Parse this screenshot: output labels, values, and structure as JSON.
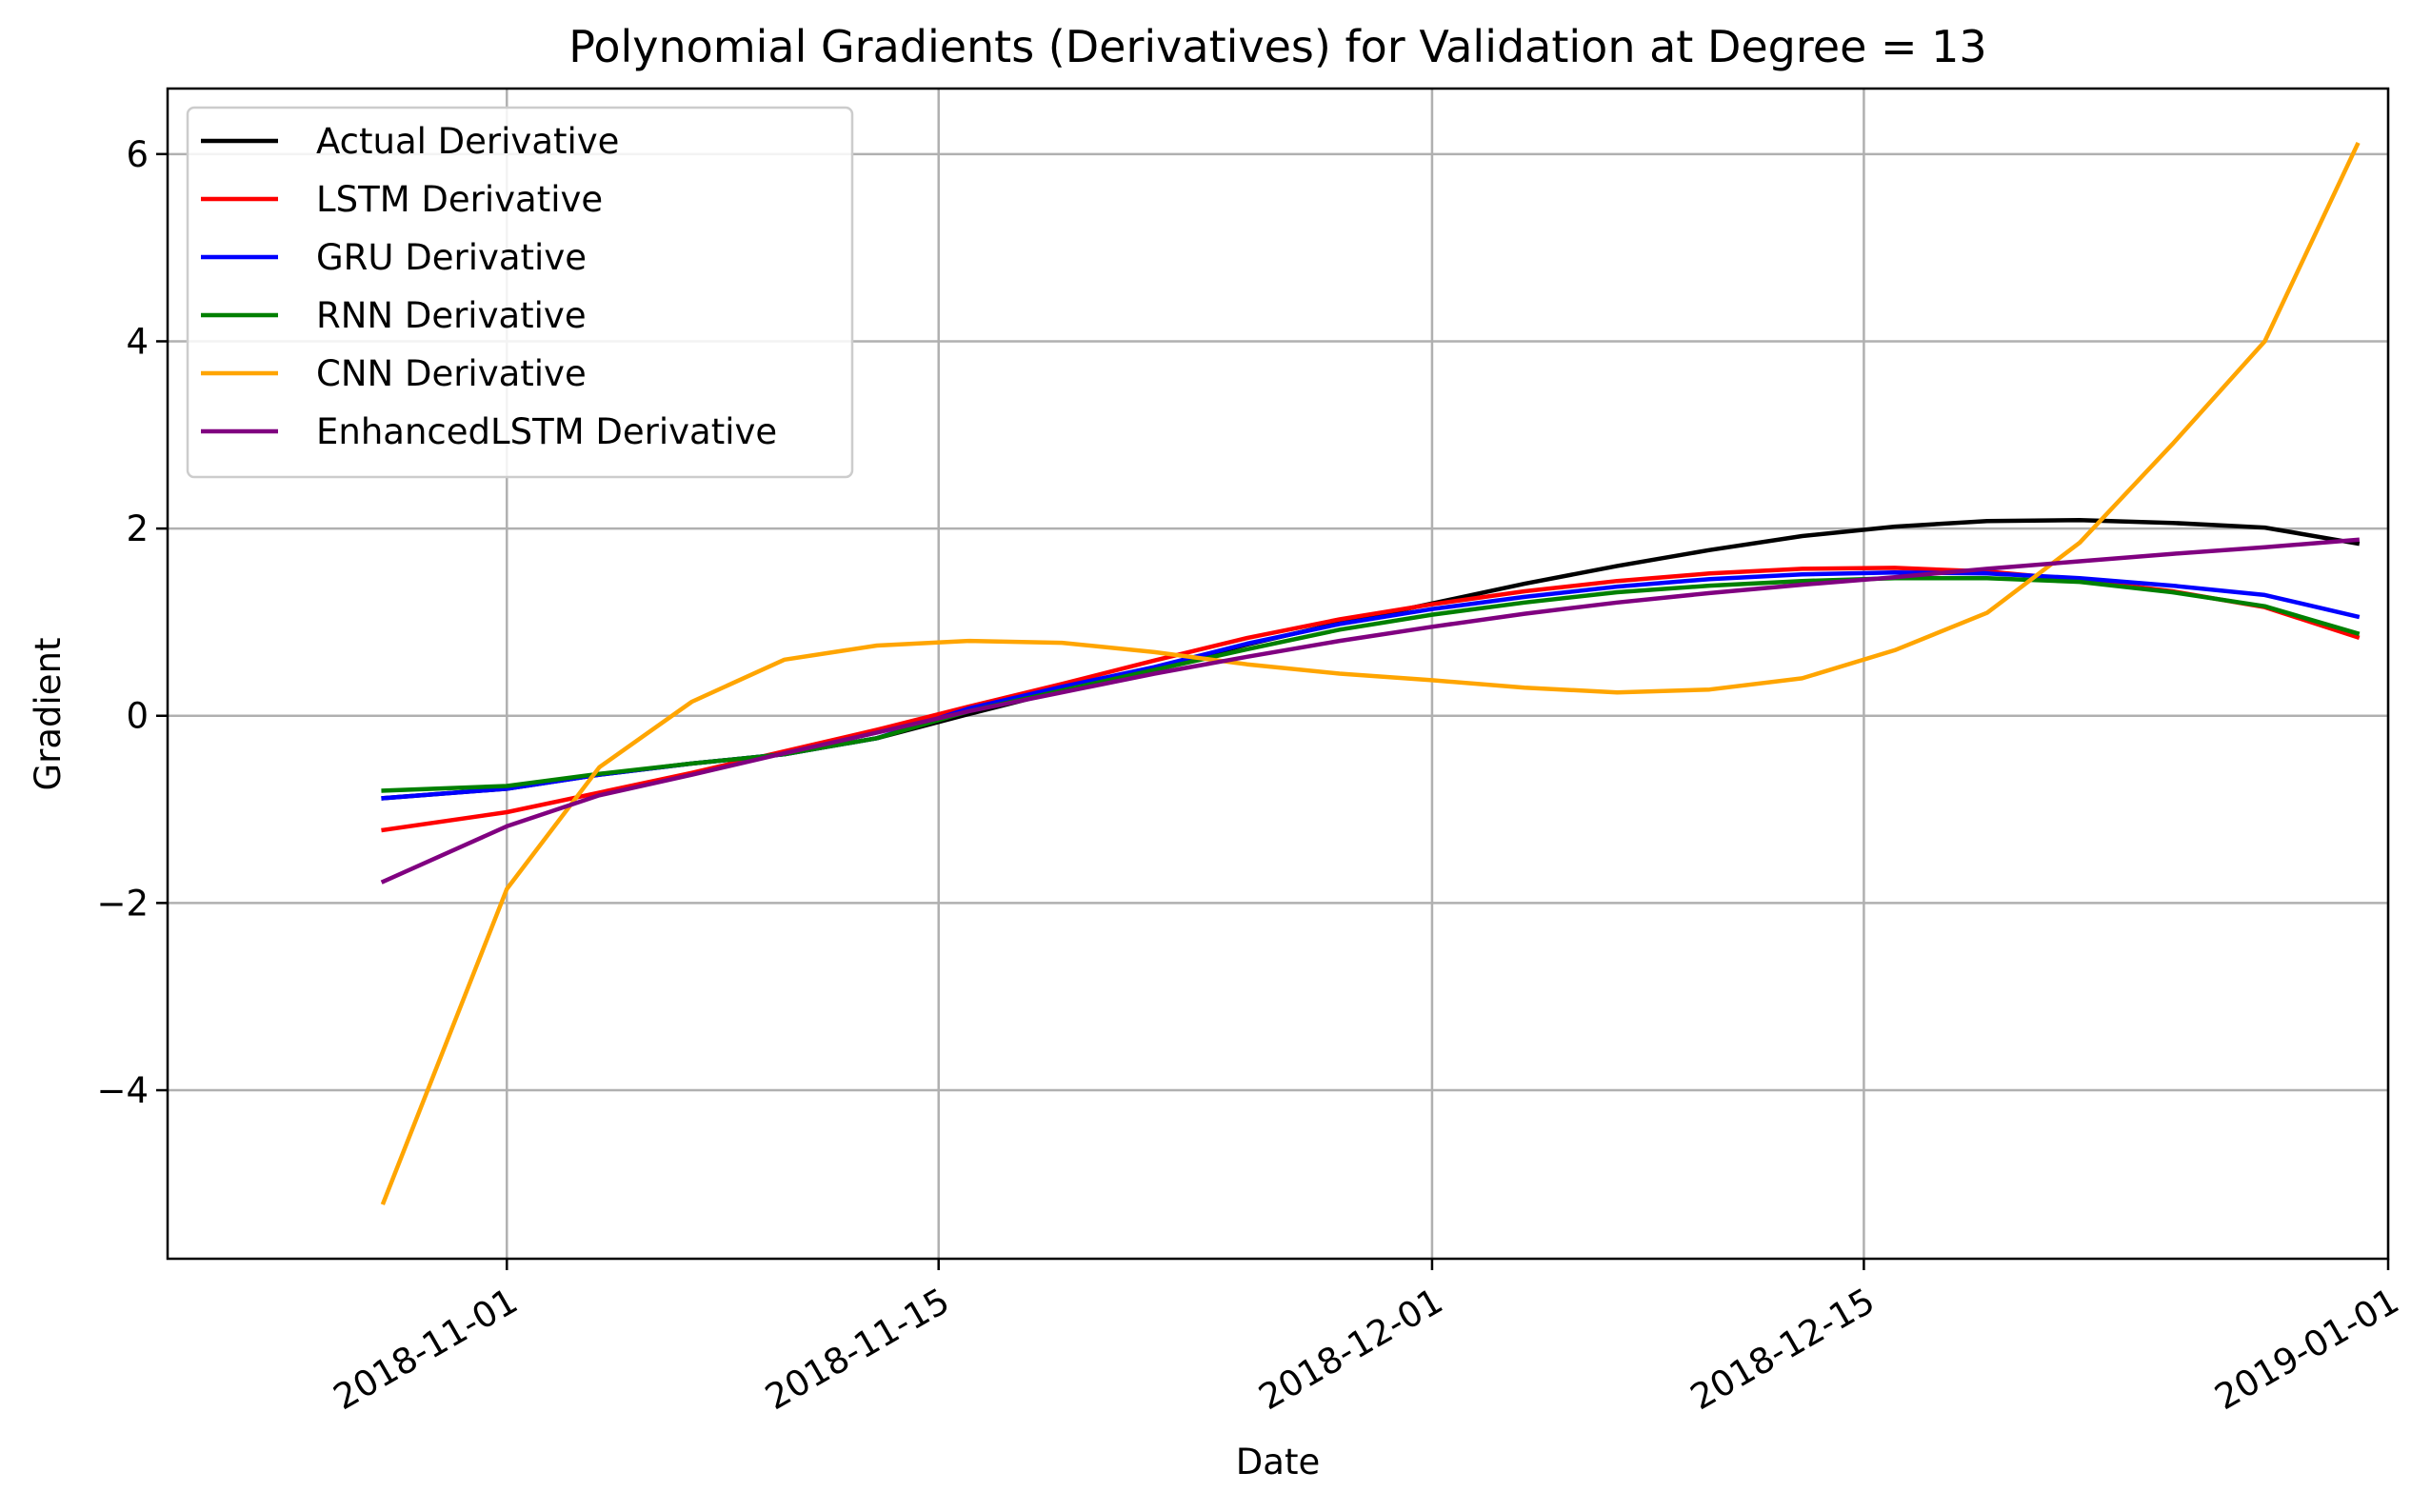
{
  "chart_data": {
    "type": "line",
    "title": "Polynomial Gradients (Derivatives) for Validation at Degree = 13",
    "xlabel": "Date",
    "ylabel": "Gradient",
    "xlim": [
      "2018-10-21",
      "2019-01-01"
    ],
    "ylim": [
      -5.8,
      6.7
    ],
    "grid": true,
    "legend_position": "upper left",
    "x_ticks": [
      "2018-11-01",
      "2018-11-15",
      "2018-12-01",
      "2018-12-15",
      "2019-01-01"
    ],
    "y_ticks": [
      -4,
      -2,
      0,
      2,
      4,
      6
    ],
    "y_tick_labels": [
      "−4",
      "−2",
      "0",
      "2",
      "4",
      "6"
    ],
    "x": [
      "2018-10-28",
      "2018-11-01",
      "2018-11-04",
      "2018-11-07",
      "2018-11-10",
      "2018-11-13",
      "2018-11-16",
      "2018-11-19",
      "2018-11-22",
      "2018-11-25",
      "2018-11-28",
      "2018-12-01",
      "2018-12-04",
      "2018-12-07",
      "2018-12-10",
      "2018-12-13",
      "2018-12-16",
      "2018-12-19",
      "2018-12-22",
      "2018-12-25",
      "2018-12-28",
      "2018-12-31"
    ],
    "series": [
      {
        "name": "Actual Derivative",
        "color": "#000000",
        "values": [
          -0.88,
          -0.78,
          -0.63,
          -0.51,
          -0.41,
          -0.24,
          0.02,
          0.27,
          0.51,
          0.76,
          0.99,
          1.2,
          1.41,
          1.6,
          1.77,
          1.92,
          2.02,
          2.08,
          2.09,
          2.06,
          2.01,
          1.84
        ]
      },
      {
        "name": "LSTM Derivative",
        "color": "#ff0000",
        "values": [
          -1.22,
          -1.03,
          -0.82,
          -0.61,
          -0.38,
          -0.15,
          0.1,
          0.34,
          0.59,
          0.83,
          1.03,
          1.19,
          1.33,
          1.44,
          1.52,
          1.57,
          1.58,
          1.54,
          1.45,
          1.33,
          1.16,
          0.84
        ]
      },
      {
        "name": "GRU Derivative",
        "color": "#0000ff",
        "values": [
          -0.88,
          -0.78,
          -0.63,
          -0.51,
          -0.41,
          -0.24,
          0.08,
          0.31,
          0.52,
          0.77,
          0.98,
          1.14,
          1.27,
          1.38,
          1.46,
          1.51,
          1.53,
          1.52,
          1.47,
          1.39,
          1.29,
          1.06
        ]
      },
      {
        "name": "RNN Derivative",
        "color": "#008000",
        "values": [
          -0.8,
          -0.75,
          -0.62,
          -0.51,
          -0.41,
          -0.24,
          0.05,
          0.27,
          0.49,
          0.71,
          0.92,
          1.08,
          1.21,
          1.32,
          1.39,
          1.44,
          1.47,
          1.47,
          1.43,
          1.32,
          1.17,
          0.88
        ]
      },
      {
        "name": "CNN Derivative",
        "color": "#ffa500",
        "values": [
          -5.2,
          -1.85,
          -0.55,
          0.15,
          0.6,
          0.75,
          0.8,
          0.78,
          0.68,
          0.55,
          0.45,
          0.38,
          0.3,
          0.25,
          0.28,
          0.4,
          0.7,
          1.1,
          1.85,
          2.9,
          4.0,
          6.1
        ]
      },
      {
        "name": "EnhancedLSTM Derivative",
        "color": "#800080",
        "values": [
          -1.77,
          -1.18,
          -0.85,
          -0.63,
          -0.4,
          -0.18,
          0.05,
          0.25,
          0.45,
          0.63,
          0.8,
          0.95,
          1.09,
          1.21,
          1.31,
          1.4,
          1.48,
          1.57,
          1.65,
          1.73,
          1.8,
          1.88
        ]
      }
    ]
  }
}
